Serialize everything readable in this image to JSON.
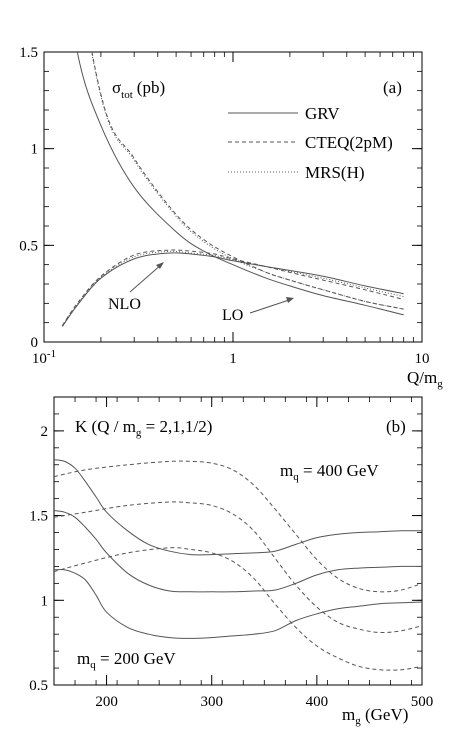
{
  "chart_data": [
    {
      "panel": "(a)",
      "type": "line",
      "title": "σtot (pb)",
      "title_main": "σ",
      "title_sub": "tot",
      "title_unit": "(pb)",
      "xlabel_main": "Q/m",
      "xlabel_sub": "g",
      "xscale": "log",
      "xlim": [
        0.1,
        10
      ],
      "ylim": [
        0,
        1.5
      ],
      "x_ticks": [
        {
          "value": 0.1,
          "base": "10",
          "exp": "-1"
        },
        {
          "value": 1,
          "label": "1"
        },
        {
          "value": 10,
          "label": "10"
        }
      ],
      "y_ticks": [
        {
          "value": 0,
          "label": "0"
        },
        {
          "value": 0.5,
          "label": "0.5"
        },
        {
          "value": 1,
          "label": "1"
        },
        {
          "value": 1.5,
          "label": "1.5"
        }
      ],
      "legend": {
        "position": "top-right",
        "entries": [
          "GRV",
          "CTEQ(2pM)",
          "MRS(H)"
        ]
      },
      "annotations": [
        "NLO",
        "LO"
      ],
      "series": [
        {
          "name": "GRV",
          "order": "LO",
          "style": "solid",
          "x": [
            0.12,
            0.15,
            0.2,
            0.3,
            0.5,
            0.7,
            1,
            1.5,
            2,
            3,
            5,
            8
          ],
          "y": [
            2.2,
            1.5,
            1.12,
            0.8,
            0.57,
            0.47,
            0.4,
            0.33,
            0.29,
            0.24,
            0.19,
            0.14
          ]
        },
        {
          "name": "CTEQ(2pM)",
          "order": "LO",
          "style": "dashed",
          "x": [
            0.12,
            0.2,
            0.3,
            0.5,
            0.7,
            1,
            1.5,
            2,
            3,
            5,
            8
          ],
          "y": [
            2.5,
            1.28,
            0.95,
            0.66,
            0.53,
            0.44,
            0.36,
            0.32,
            0.27,
            0.21,
            0.17
          ]
        },
        {
          "name": "MRS(H)",
          "order": "LO",
          "style": "dotted",
          "x": [
            0.12,
            0.2,
            0.3,
            0.5,
            0.7,
            1,
            1.5,
            2,
            3,
            5,
            8
          ],
          "y": [
            2.5,
            1.27,
            0.94,
            0.65,
            0.52,
            0.43,
            0.36,
            0.32,
            0.27,
            0.21,
            0.17
          ]
        },
        {
          "name": "GRV",
          "order": "NLO",
          "style": "solid",
          "x": [
            0.125,
            0.15,
            0.2,
            0.3,
            0.45,
            0.6,
            0.8,
            1,
            1.5,
            2,
            3,
            5,
            8
          ],
          "y": [
            0.08,
            0.19,
            0.33,
            0.43,
            0.46,
            0.455,
            0.44,
            0.42,
            0.39,
            0.37,
            0.34,
            0.29,
            0.25
          ]
        },
        {
          "name": "CTEQ(2pM)",
          "order": "NLO",
          "style": "dashed",
          "x": [
            0.125,
            0.15,
            0.2,
            0.3,
            0.45,
            0.6,
            0.8,
            1,
            1.5,
            2,
            3,
            5,
            8
          ],
          "y": [
            0.085,
            0.2,
            0.34,
            0.45,
            0.475,
            0.47,
            0.455,
            0.43,
            0.39,
            0.36,
            0.32,
            0.27,
            0.22
          ]
        },
        {
          "name": "MRS(H)",
          "order": "NLO",
          "style": "dotted",
          "x": [
            0.125,
            0.15,
            0.2,
            0.3,
            0.45,
            0.6,
            0.8,
            1,
            1.5,
            2,
            3,
            5,
            8
          ],
          "y": [
            0.082,
            0.195,
            0.335,
            0.44,
            0.468,
            0.46,
            0.447,
            0.425,
            0.39,
            0.365,
            0.33,
            0.28,
            0.235
          ]
        }
      ]
    },
    {
      "panel": "(b)",
      "type": "line",
      "title_main": "K (Q / m",
      "title_sub": "g",
      "title_rest": " = 2,1,1/2)",
      "xlabel_main": "m",
      "xlabel_sub": "g",
      "xlabel_unit": " (GeV)",
      "xlim": [
        150,
        500
      ],
      "ylim": [
        0.5,
        2.2
      ],
      "x_ticks": [
        {
          "value": 200,
          "label": "200"
        },
        {
          "value": 300,
          "label": "300"
        },
        {
          "value": 400,
          "label": "400"
        },
        {
          "value": 500,
          "label": "500"
        }
      ],
      "y_ticks": [
        {
          "value": 0.5,
          "label": "0.5"
        },
        {
          "value": 1,
          "label": "1"
        },
        {
          "value": 1.5,
          "label": "1.5"
        },
        {
          "value": 2,
          "label": "2"
        }
      ],
      "label_top": {
        "main": "m",
        "sub": "q",
        "rest": " = 400 GeV"
      },
      "label_bottom": {
        "main": "m",
        "sub": "q",
        "rest": " = 200 GeV"
      },
      "series": [
        {
          "mq": "200 GeV",
          "Q_over_m": "1/2",
          "style": "solid",
          "x": [
            150,
            160,
            170,
            180,
            190,
            200,
            220,
            240,
            260,
            280,
            300,
            320,
            340,
            360,
            380,
            400,
            420,
            440,
            460,
            480,
            500
          ],
          "y": [
            1.83,
            1.82,
            1.78,
            1.7,
            1.61,
            1.52,
            1.41,
            1.33,
            1.29,
            1.27,
            1.27,
            1.275,
            1.28,
            1.29,
            1.33,
            1.37,
            1.39,
            1.4,
            1.405,
            1.41,
            1.41
          ]
        },
        {
          "mq": "200 GeV",
          "Q_over_m": "1",
          "style": "solid",
          "x": [
            150,
            160,
            170,
            180,
            190,
            200,
            220,
            240,
            260,
            280,
            300,
            320,
            340,
            360,
            380,
            400,
            420,
            440,
            460,
            480,
            500
          ],
          "y": [
            1.53,
            1.52,
            1.49,
            1.43,
            1.36,
            1.28,
            1.16,
            1.09,
            1.055,
            1.05,
            1.05,
            1.05,
            1.055,
            1.06,
            1.1,
            1.15,
            1.18,
            1.19,
            1.195,
            1.2,
            1.2
          ]
        },
        {
          "mq": "200 GeV",
          "Q_over_m": "2",
          "style": "solid",
          "x": [
            150,
            160,
            170,
            180,
            190,
            200,
            220,
            240,
            260,
            280,
            300,
            320,
            340,
            360,
            380,
            400,
            420,
            440,
            460,
            480,
            500
          ],
          "y": [
            1.18,
            1.18,
            1.16,
            1.12,
            1.03,
            0.93,
            0.84,
            0.8,
            0.78,
            0.775,
            0.78,
            0.79,
            0.8,
            0.82,
            0.88,
            0.92,
            0.95,
            0.965,
            0.98,
            0.985,
            0.99
          ]
        },
        {
          "mq": "400 GeV",
          "Q_over_m": "1/2",
          "style": "dashed",
          "x": [
            150,
            180,
            220,
            260,
            280,
            300,
            320,
            340,
            360,
            380,
            400,
            420,
            440,
            460,
            480,
            500
          ],
          "y": [
            1.73,
            1.77,
            1.8,
            1.82,
            1.82,
            1.81,
            1.77,
            1.68,
            1.54,
            1.39,
            1.24,
            1.13,
            1.07,
            1.05,
            1.06,
            1.1
          ]
        },
        {
          "mq": "400 GeV",
          "Q_over_m": "1",
          "style": "dashed",
          "x": [
            150,
            180,
            220,
            260,
            280,
            300,
            320,
            340,
            360,
            380,
            400,
            420,
            440,
            460,
            480,
            500
          ],
          "y": [
            1.49,
            1.52,
            1.56,
            1.58,
            1.575,
            1.56,
            1.51,
            1.41,
            1.25,
            1.09,
            0.96,
            0.87,
            0.83,
            0.81,
            0.82,
            0.85
          ]
        },
        {
          "mq": "400 GeV",
          "Q_over_m": "2",
          "style": "dashed",
          "x": [
            150,
            180,
            220,
            260,
            280,
            300,
            320,
            340,
            360,
            380,
            400,
            420,
            440,
            460,
            480,
            500
          ],
          "y": [
            1.17,
            1.22,
            1.28,
            1.31,
            1.3,
            1.28,
            1.23,
            1.13,
            0.98,
            0.84,
            0.73,
            0.66,
            0.61,
            0.59,
            0.59,
            0.61
          ]
        }
      ]
    }
  ]
}
